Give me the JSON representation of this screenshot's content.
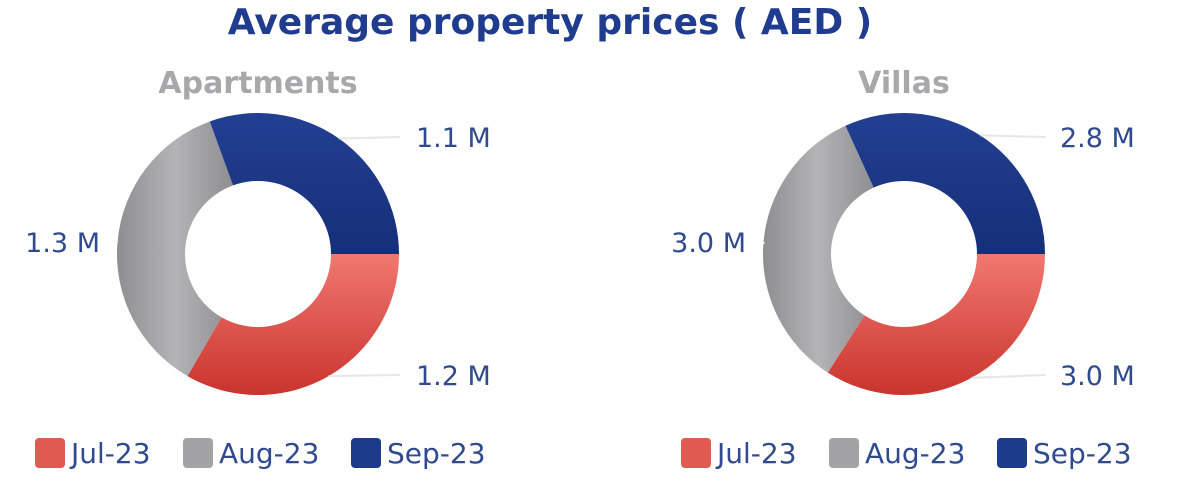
{
  "title": "Average property prices ( AED )",
  "colors": {
    "title": "#1f3c8e",
    "subtitle": "#a8a8aa",
    "label": "#2f4a8f"
  },
  "chart_data": [
    {
      "type": "donut",
      "title": "Apartments",
      "categories": [
        "Jul-23",
        "Aug-23",
        "Sep-23"
      ],
      "values": [
        1.2,
        1.3,
        1.1
      ],
      "value_labels": [
        "1.2 M",
        "1.3 M",
        "1.1 M"
      ],
      "colors": [
        "#e05a52",
        "#a3a3a6",
        "#1d3b8b"
      ],
      "legend": "bottom"
    },
    {
      "type": "donut",
      "title": "Villas",
      "categories": [
        "Jul-23",
        "Aug-23",
        "Sep-23"
      ],
      "values": [
        3.0,
        3.0,
        2.8
      ],
      "value_labels": [
        "3.0 M",
        "3.0 M",
        "2.8 M"
      ],
      "colors": [
        "#e05a52",
        "#a3a3a6",
        "#1d3b8b"
      ],
      "legend": "bottom"
    }
  ]
}
